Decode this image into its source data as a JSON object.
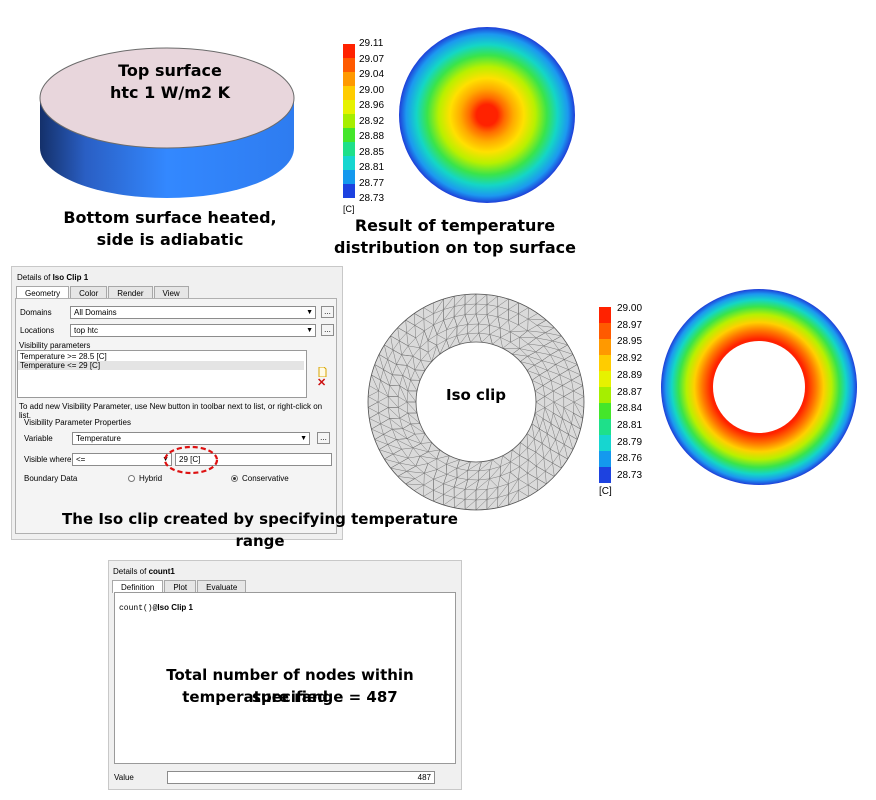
{
  "cylinder": {
    "top_label_1": "Top surface",
    "top_label_2": "htc 1 W/m2 K",
    "bottom_caption_1": "Bottom surface heated,",
    "bottom_caption_2": "side is adiabatic",
    "top_color": "#e8d6dc",
    "side_color": "#2f7cf2"
  },
  "top_result": {
    "caption_1": "Result of temperature",
    "caption_2": "distribution on top surface",
    "colorbar_values": [
      "29.11",
      "29.07",
      "29.04",
      "29.00",
      "28.96",
      "28.92",
      "28.88",
      "28.85",
      "28.81",
      "28.77",
      "28.73"
    ],
    "unit": "[C]"
  },
  "iso_clip_panel": {
    "title_prefix": "Details of ",
    "title_name": "Iso Clip 1",
    "tabs": [
      "Geometry",
      "Color",
      "Render",
      "View"
    ],
    "domains_label": "Domains",
    "domains_value": "All Domains",
    "locations_label": "Locations",
    "locations_value": "top htc",
    "visibility_params_label": "Visibility parameters",
    "visibility_params": [
      "Temperature >= 28.5 [C]",
      "Temperature <= 29 [C]"
    ],
    "hint": "To add new Visibility Parameter, use New button in toolbar next to list, or right-click on list.",
    "vpp_label": "Visibility Parameter Properties",
    "variable_label": "Variable",
    "variable_value": "Temperature",
    "visible_where_label": "Visible where",
    "operator_value": "<=",
    "threshold_value": "29 [C]",
    "boundary_label": "Boundary Data",
    "option_hybrid": "Hybrid",
    "option_conservative": "Conservative",
    "button_ellipsis": "...",
    "caption": "The Iso clip created by specifying temperature range"
  },
  "mesh": {
    "label": "Iso clip"
  },
  "clip_result": {
    "colorbar_values": [
      "29.00",
      "28.97",
      "28.95",
      "28.92",
      "28.89",
      "28.87",
      "28.84",
      "28.81",
      "28.79",
      "28.76",
      "28.73"
    ],
    "unit": "[C]"
  },
  "count_panel": {
    "title_prefix": "Details of ",
    "title_name": "count1",
    "tabs": [
      "Definition",
      "Plot",
      "Evaluate"
    ],
    "expr_prefix": "count()@",
    "expr_target": "Iso Clip 1",
    "caption_1": "Total number of nodes within specified",
    "caption_2": "temperature range = 487",
    "value_label": "Value",
    "value": "487"
  }
}
